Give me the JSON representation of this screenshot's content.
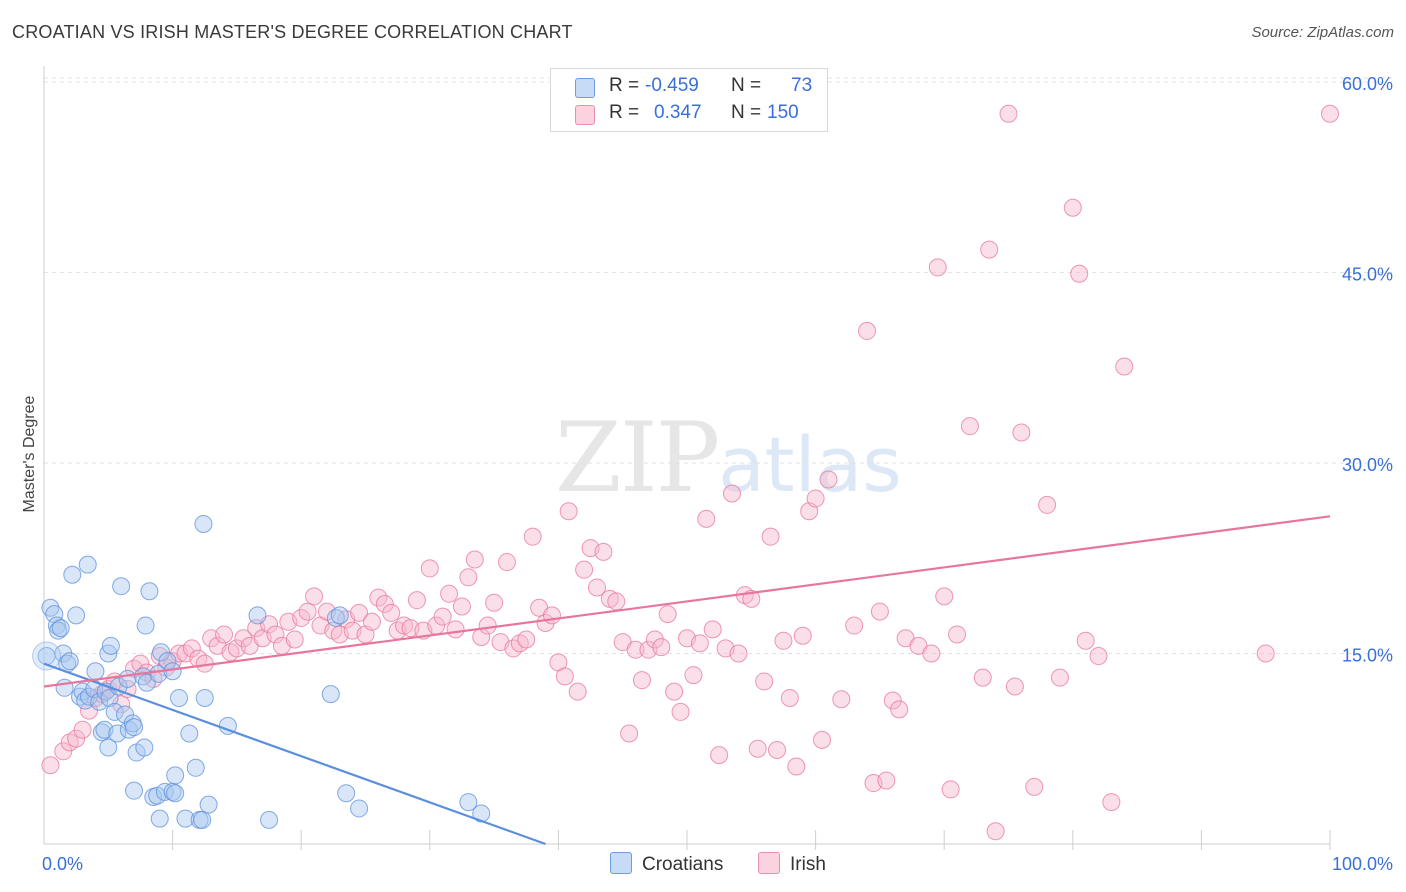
{
  "title": "CROATIAN VS IRISH MASTER'S DEGREE CORRELATION CHART",
  "source": "Source: ZipAtlas.com",
  "watermark": {
    "zip": "ZIP",
    "atlas": "atlas"
  },
  "legend": {
    "rows": [
      {
        "r_label": "R =",
        "r_value": "-0.459",
        "n_label": "N =",
        "n_value": "73",
        "color": "#a9c8f0"
      },
      {
        "r_label": "R =",
        "r_value": "0.347",
        "n_label": "N =",
        "n_value": "150",
        "color": "#f6b8cb"
      }
    ]
  },
  "chart_data": {
    "type": "scatter",
    "title": "CROATIAN VS IRISH MASTER'S DEGREE CORRELATION CHART",
    "xlabel": "",
    "ylabel": "Master's Degree",
    "xlim": [
      0,
      100
    ],
    "ylim": [
      0,
      60
    ],
    "x_tick_labels": [
      "0.0%",
      "100.0%"
    ],
    "y_ticks": [
      15,
      30,
      45,
      60
    ],
    "y_tick_labels": [
      "15.0%",
      "30.0%",
      "45.0%",
      "60.0%"
    ],
    "grid": true,
    "series": [
      {
        "name": "Croatians",
        "color": "#5b8fde",
        "fill": "#a9c8f0",
        "trend": {
          "x": [
            0,
            39
          ],
          "y": [
            14.2,
            0
          ]
        },
        "points": [
          [
            0.5,
            18.6
          ],
          [
            0.8,
            18.1
          ],
          [
            1,
            17.2
          ],
          [
            1.1,
            16.8
          ],
          [
            1.3,
            17
          ],
          [
            1.5,
            15
          ],
          [
            1.8,
            14.2
          ],
          [
            2,
            14.4
          ],
          [
            2.2,
            21.2
          ],
          [
            2.5,
            18
          ],
          [
            1.6,
            12.3
          ],
          [
            2.8,
            11.6
          ],
          [
            3,
            12
          ],
          [
            3.2,
            11.3
          ],
          [
            3.5,
            11.6
          ],
          [
            3.4,
            22
          ],
          [
            3.9,
            12.2
          ],
          [
            4,
            13.6
          ],
          [
            4.3,
            11.2
          ],
          [
            4.5,
            8.8
          ],
          [
            4.8,
            12
          ],
          [
            4.7,
            9
          ],
          [
            5,
            7.6
          ],
          [
            5,
            15
          ],
          [
            5.1,
            11.5
          ],
          [
            5.2,
            15.6
          ],
          [
            5.5,
            10.4
          ],
          [
            5.8,
            12.4
          ],
          [
            5.7,
            8.7
          ],
          [
            6,
            20.3
          ],
          [
            6.3,
            10.2
          ],
          [
            6.6,
            9
          ],
          [
            6.5,
            13
          ],
          [
            6.9,
            9.5
          ],
          [
            7,
            9.2
          ],
          [
            7,
            4.2
          ],
          [
            7.2,
            7.2
          ],
          [
            7.7,
            13.2
          ],
          [
            7.9,
            17.2
          ],
          [
            7.8,
            7.6
          ],
          [
            8,
            12.7
          ],
          [
            8.2,
            19.9
          ],
          [
            8.5,
            3.7
          ],
          [
            8.8,
            3.8
          ],
          [
            8.9,
            13.4
          ],
          [
            9,
            2
          ],
          [
            9.1,
            15.1
          ],
          [
            9.4,
            4.1
          ],
          [
            9.6,
            14.4
          ],
          [
            10,
            4.1
          ],
          [
            10,
            13.6
          ],
          [
            10.2,
            5.4
          ],
          [
            10.2,
            4
          ],
          [
            10.5,
            11.5
          ],
          [
            11,
            2
          ],
          [
            11.3,
            8.7
          ],
          [
            11.8,
            6
          ],
          [
            12.1,
            1.9
          ],
          [
            12.3,
            1.9
          ],
          [
            12.4,
            25.2
          ],
          [
            12.5,
            11.5
          ],
          [
            12.8,
            3.1
          ],
          [
            14.3,
            9.3
          ],
          [
            16.6,
            18
          ],
          [
            17.5,
            1.9
          ],
          [
            22.3,
            11.8
          ],
          [
            22.7,
            17.8
          ],
          [
            23,
            18
          ],
          [
            23.5,
            4
          ],
          [
            24.5,
            2.8
          ],
          [
            33,
            3.3
          ],
          [
            34,
            2.4
          ],
          [
            0.2,
            14.8
          ]
        ]
      },
      {
        "name": "Irish",
        "color": "#e8769c",
        "fill": "#f6b8cb",
        "trend": {
          "x": [
            0,
            100
          ],
          "y": [
            12.4,
            25.8
          ]
        },
        "points": [
          [
            0.5,
            6.2
          ],
          [
            1.5,
            7.3
          ],
          [
            2,
            8
          ],
          [
            2.5,
            8.3
          ],
          [
            3,
            9
          ],
          [
            3.5,
            10.5
          ],
          [
            4,
            11.5
          ],
          [
            4.5,
            11.8
          ],
          [
            5,
            12.2
          ],
          [
            5.5,
            12.8
          ],
          [
            6,
            11
          ],
          [
            6.5,
            12.2
          ],
          [
            7,
            13.8
          ],
          [
            7.5,
            14.2
          ],
          [
            8,
            13.5
          ],
          [
            8.5,
            13
          ],
          [
            9,
            14.8
          ],
          [
            9.5,
            13.9
          ],
          [
            10,
            14.4
          ],
          [
            10.5,
            15
          ],
          [
            11,
            15
          ],
          [
            11.5,
            15.4
          ],
          [
            12,
            14.6
          ],
          [
            12.5,
            14.2
          ],
          [
            13,
            16.2
          ],
          [
            13.5,
            15.6
          ],
          [
            14,
            16.5
          ],
          [
            14.5,
            15.1
          ],
          [
            15,
            15.4
          ],
          [
            15.5,
            16.2
          ],
          [
            16,
            15.6
          ],
          [
            16.5,
            17
          ],
          [
            17,
            16.2
          ],
          [
            17.5,
            17.3
          ],
          [
            18,
            16.5
          ],
          [
            18.5,
            15.6
          ],
          [
            19,
            17.5
          ],
          [
            19.5,
            16.1
          ],
          [
            20,
            17.8
          ],
          [
            20.5,
            18.3
          ],
          [
            21,
            19.5
          ],
          [
            21.5,
            17.2
          ],
          [
            22,
            18.3
          ],
          [
            22.5,
            16.8
          ],
          [
            23,
            16.5
          ],
          [
            23.5,
            17.7
          ],
          [
            24,
            16.8
          ],
          [
            24.5,
            18.2
          ],
          [
            25,
            16.5
          ],
          [
            25.5,
            17.5
          ],
          [
            26,
            19.4
          ],
          [
            26.5,
            18.9
          ],
          [
            27,
            18.2
          ],
          [
            27.5,
            16.8
          ],
          [
            28,
            17.2
          ],
          [
            28.5,
            17
          ],
          [
            29,
            19.2
          ],
          [
            29.5,
            16.8
          ],
          [
            30,
            21.7
          ],
          [
            30.5,
            17.2
          ],
          [
            31,
            17.9
          ],
          [
            31.5,
            19.7
          ],
          [
            32,
            16.9
          ],
          [
            32.5,
            18.7
          ],
          [
            33,
            21
          ],
          [
            33.5,
            22.4
          ],
          [
            34,
            16.3
          ],
          [
            34.5,
            17.2
          ],
          [
            35,
            19
          ],
          [
            35.5,
            15.9
          ],
          [
            36,
            22.2
          ],
          [
            36.5,
            15.4
          ],
          [
            37,
            15.8
          ],
          [
            37.5,
            16.1
          ],
          [
            38,
            24.2
          ],
          [
            38.5,
            18.6
          ],
          [
            39,
            17.4
          ],
          [
            39.5,
            18
          ],
          [
            40,
            14.3
          ],
          [
            40.5,
            13.2
          ],
          [
            40.8,
            26.2
          ],
          [
            41.5,
            12
          ],
          [
            42,
            21.6
          ],
          [
            42.5,
            23.3
          ],
          [
            43,
            20.2
          ],
          [
            43.5,
            23
          ],
          [
            44,
            19.3
          ],
          [
            44.5,
            19.1
          ],
          [
            45,
            15.9
          ],
          [
            45.5,
            8.7
          ],
          [
            46,
            15.3
          ],
          [
            46.5,
            12.9
          ],
          [
            47,
            15.3
          ],
          [
            47.5,
            16.1
          ],
          [
            48,
            15.5
          ],
          [
            48.5,
            18.1
          ],
          [
            49,
            12
          ],
          [
            49.5,
            10.4
          ],
          [
            50,
            16.2
          ],
          [
            50.5,
            13.3
          ],
          [
            51,
            15.8
          ],
          [
            51.5,
            25.6
          ],
          [
            52,
            16.9
          ],
          [
            52.5,
            7
          ],
          [
            53,
            15.4
          ],
          [
            53.5,
            27.6
          ],
          [
            54,
            15
          ],
          [
            54.5,
            19.6
          ],
          [
            55,
            19.3
          ],
          [
            55.5,
            7.5
          ],
          [
            56,
            12.8
          ],
          [
            56.5,
            24.2
          ],
          [
            57,
            7.4
          ],
          [
            57.5,
            16
          ],
          [
            58,
            11.5
          ],
          [
            58.5,
            6.1
          ],
          [
            59,
            16.4
          ],
          [
            59.5,
            26.2
          ],
          [
            60,
            27.2
          ],
          [
            60.5,
            8.2
          ],
          [
            61,
            28.7
          ],
          [
            62,
            11.4
          ],
          [
            63,
            17.2
          ],
          [
            64,
            40.4
          ],
          [
            64.5,
            4.8
          ],
          [
            65,
            18.3
          ],
          [
            65.5,
            5
          ],
          [
            66,
            11.3
          ],
          [
            66.5,
            10.6
          ],
          [
            67,
            16.2
          ],
          [
            68,
            15.6
          ],
          [
            69,
            15
          ],
          [
            69.5,
            45.4
          ],
          [
            70,
            19.5
          ],
          [
            70.5,
            4.3
          ],
          [
            71,
            16.5
          ],
          [
            72,
            32.9
          ],
          [
            73,
            13.1
          ],
          [
            73.5,
            46.8
          ],
          [
            74,
            1
          ],
          [
            75,
            57.5
          ],
          [
            75.5,
            12.4
          ],
          [
            76,
            32.4
          ],
          [
            77,
            4.5
          ],
          [
            78,
            26.7
          ],
          [
            79,
            13.1
          ],
          [
            80,
            50.1
          ],
          [
            80.5,
            44.9
          ],
          [
            81,
            16
          ],
          [
            82,
            14.8
          ],
          [
            83,
            3.3
          ],
          [
            84,
            37.6
          ],
          [
            95,
            15
          ],
          [
            100,
            57.5
          ]
        ]
      }
    ],
    "legend_entries": [
      "Croatians",
      "Irish"
    ],
    "legend_placement": "bottom-center"
  }
}
